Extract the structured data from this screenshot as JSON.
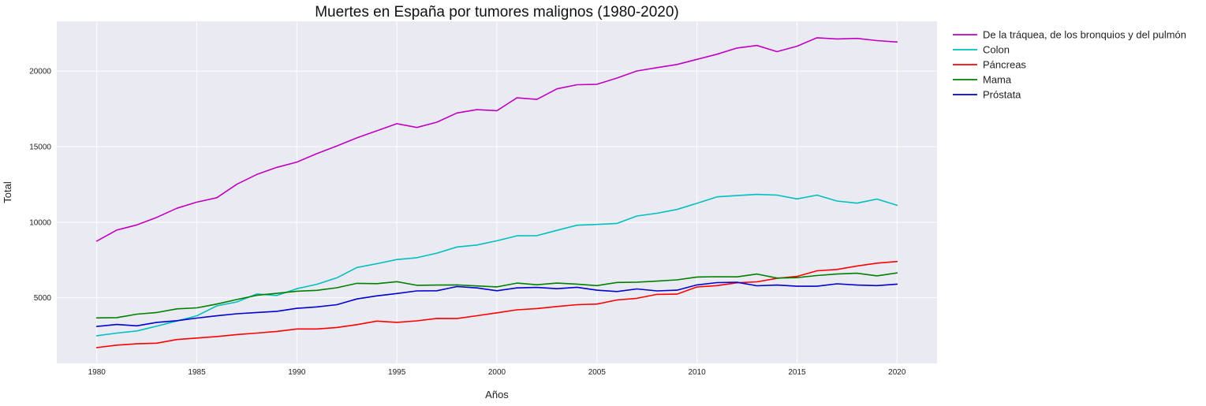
{
  "chart_data": {
    "type": "line",
    "title": "Muertes en España por tumores malignos (1980-2020)",
    "xlabel": "Años",
    "ylabel": "Total",
    "xlim": [
      1978,
      2022
    ],
    "ylim": [
      650,
      23300
    ],
    "x_ticks": [
      1980,
      1985,
      1990,
      1995,
      2000,
      2005,
      2010,
      2015,
      2020
    ],
    "y_ticks": [
      5000,
      10000,
      15000,
      20000
    ],
    "grid": true,
    "legend_position": "outside-top-right",
    "x": [
      1980,
      1981,
      1982,
      1983,
      1984,
      1985,
      1986,
      1987,
      1988,
      1989,
      1990,
      1991,
      1992,
      1993,
      1994,
      1995,
      1996,
      1997,
      1998,
      1999,
      2000,
      2001,
      2002,
      2003,
      2004,
      2005,
      2006,
      2007,
      2008,
      2009,
      2010,
      2011,
      2012,
      2013,
      2014,
      2015,
      2016,
      2017,
      2018,
      2019,
      2020
    ],
    "series": [
      {
        "name": "De la tráquea, de los bronquios y del pulmón",
        "color": "#c000c0",
        "values": [
          8750,
          9480,
          9820,
          10320,
          10920,
          11330,
          11620,
          12510,
          13160,
          13630,
          13980,
          14540,
          15050,
          15580,
          16050,
          16520,
          16270,
          16620,
          17230,
          17450,
          17380,
          18230,
          18130,
          18830,
          19100,
          19130,
          19540,
          20010,
          20230,
          20440,
          20780,
          21120,
          21530,
          21700,
          21290,
          21650,
          22210,
          22130,
          22170,
          22020,
          21930
        ]
      },
      {
        "name": "Colon",
        "color": "#00bfbf",
        "values": [
          2480,
          2660,
          2800,
          3120,
          3460,
          3800,
          4460,
          4720,
          5250,
          5150,
          5600,
          5890,
          6320,
          7000,
          7250,
          7530,
          7650,
          7950,
          8360,
          8490,
          8770,
          9100,
          9110,
          9460,
          9800,
          9850,
          9920,
          10410,
          10590,
          10840,
          11250,
          11680,
          11760,
          11840,
          11790,
          11540,
          11790,
          11400,
          11260,
          11530,
          11120
        ]
      },
      {
        "name": "Páncreas",
        "color": "#ff0000",
        "values": [
          1700,
          1860,
          1950,
          1990,
          2230,
          2330,
          2430,
          2560,
          2660,
          2770,
          2930,
          2930,
          3030,
          3220,
          3450,
          3370,
          3470,
          3630,
          3620,
          3810,
          4000,
          4200,
          4280,
          4420,
          4540,
          4580,
          4850,
          4960,
          5220,
          5240,
          5710,
          5800,
          5990,
          6050,
          6280,
          6410,
          6780,
          6870,
          7100,
          7290,
          7400
        ]
      },
      {
        "name": "Mama",
        "color": "#008000",
        "values": [
          3660,
          3680,
          3910,
          4020,
          4260,
          4330,
          4580,
          4880,
          5160,
          5290,
          5430,
          5490,
          5660,
          5950,
          5930,
          6060,
          5820,
          5840,
          5850,
          5780,
          5720,
          5970,
          5860,
          5970,
          5900,
          5800,
          6010,
          6030,
          6100,
          6180,
          6370,
          6390,
          6380,
          6570,
          6300,
          6330,
          6470,
          6570,
          6620,
          6450,
          6640
        ]
      },
      {
        "name": "Próstata",
        "color": "#0000d0",
        "values": [
          3100,
          3230,
          3140,
          3370,
          3480,
          3650,
          3800,
          3940,
          4020,
          4100,
          4300,
          4390,
          4540,
          4920,
          5120,
          5280,
          5450,
          5460,
          5740,
          5650,
          5460,
          5650,
          5680,
          5600,
          5690,
          5500,
          5410,
          5580,
          5450,
          5500,
          5850,
          6000,
          6020,
          5790,
          5840,
          5760,
          5760,
          5920,
          5840,
          5800,
          5900
        ]
      }
    ]
  }
}
